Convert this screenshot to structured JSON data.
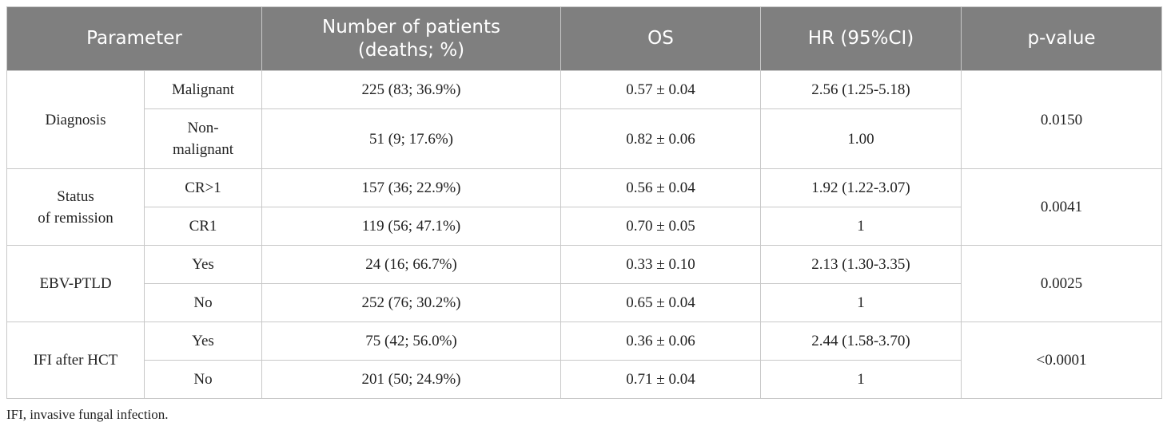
{
  "table": {
    "headers": {
      "parameter": "Parameter",
      "patients_line1": "Number of patients",
      "patients_line2": "(deaths; %)",
      "os": "OS",
      "hr": "HR (95%CI)",
      "pvalue": "p-value"
    },
    "groups": [
      {
        "parameter": "Diagnosis",
        "pvalue": "0.0150",
        "rows": [
          {
            "category": "Malignant",
            "patients": "225 (83; 36.9%)",
            "os": "0.57 ± 0.04",
            "hr": "2.56 (1.25-5.18)"
          },
          {
            "category_line1": "Non-",
            "category_line2": "malignant",
            "patients": "51 (9; 17.6%)",
            "os": "0.82 ± 0.06",
            "hr": "1.00"
          }
        ]
      },
      {
        "parameter_line1": "Status",
        "parameter_line2": "of remission",
        "pvalue": "0.0041",
        "rows": [
          {
            "category": "CR>1",
            "patients": "157 (36; 22.9%)",
            "os": "0.56 ± 0.04",
            "hr": "1.92 (1.22-3.07)"
          },
          {
            "category": "CR1",
            "patients": "119 (56; 47.1%)",
            "os": "0.70 ± 0.05",
            "hr": "1"
          }
        ]
      },
      {
        "parameter": "EBV-PTLD",
        "pvalue": "0.0025",
        "rows": [
          {
            "category": "Yes",
            "patients": "24 (16; 66.7%)",
            "os": "0.33 ± 0.10",
            "hr": "2.13 (1.30-3.35)"
          },
          {
            "category": "No",
            "patients": "252 (76; 30.2%)",
            "os": "0.65 ± 0.04",
            "hr": "1"
          }
        ]
      },
      {
        "parameter": "IFI after HCT",
        "pvalue": "<0.0001",
        "rows": [
          {
            "category": "Yes",
            "patients": "75 (42; 56.0%)",
            "os": "0.36 ± 0.06",
            "hr": "2.44 (1.58-3.70)"
          },
          {
            "category": "No",
            "patients": "201 (50; 24.9%)",
            "os": "0.71 ± 0.04",
            "hr": "1"
          }
        ]
      }
    ]
  },
  "footnote": "IFI, invasive fungal infection."
}
